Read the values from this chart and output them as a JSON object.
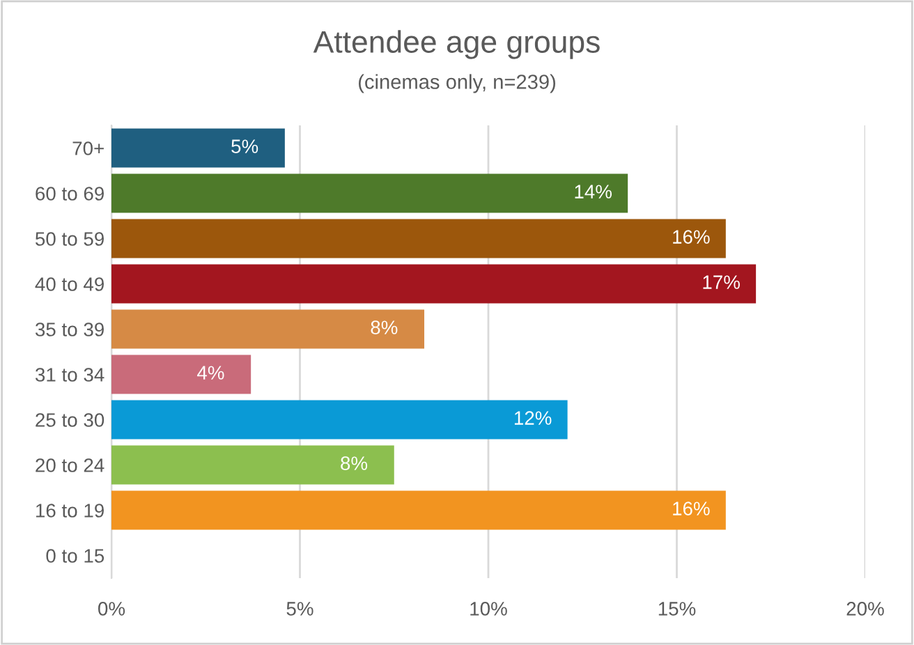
{
  "chart_data": {
    "type": "bar",
    "orientation": "horizontal",
    "title": "Attendee age groups",
    "subtitle": "(cinemas only, n=239)",
    "categories": [
      "70+",
      "60 to 69",
      "50 to 59",
      "40 to 49",
      "35 to 39",
      "31 to 34",
      "25 to 30",
      "20 to 24",
      "16 to 19",
      "0 to 15"
    ],
    "values": [
      4.6,
      13.7,
      16.3,
      17.1,
      8.3,
      3.7,
      12.1,
      7.5,
      16.3,
      0
    ],
    "value_labels": [
      "5%",
      "14%",
      "16%",
      "17%",
      "8%",
      "4%",
      "12%",
      "8%",
      "16%",
      null
    ],
    "colors": [
      "#1f5f80",
      "#4e7a2a",
      "#9c570c",
      "#a3161f",
      "#d68a45",
      "#c96b7a",
      "#0a9ad6",
      "#8cbf4f",
      "#f29420",
      "#999999"
    ],
    "xlim": [
      0,
      20
    ],
    "xticks": [
      {
        "value": 0,
        "label": "0%"
      },
      {
        "value": 5,
        "label": "5%"
      },
      {
        "value": 10,
        "label": "10%"
      },
      {
        "value": 15,
        "label": "15%"
      },
      {
        "value": 20,
        "label": "20%"
      }
    ],
    "grid": "x"
  }
}
